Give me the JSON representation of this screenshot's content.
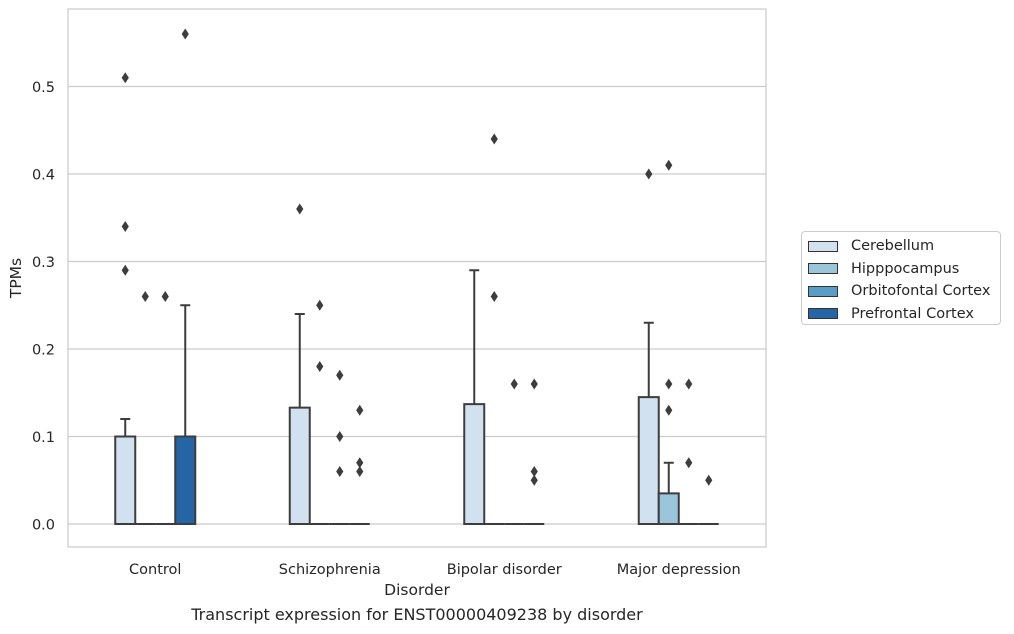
{
  "chart_data": {
    "type": "box",
    "title": "",
    "caption": "Transcript expression for ENST00000409238 by disorder",
    "xlabel": "Disorder",
    "ylabel": "TPMs",
    "ylim": [
      -0.028,
      0.588
    ],
    "yticks": [
      0.0,
      0.1,
      0.2,
      0.3,
      0.4,
      0.5
    ],
    "ytick_labels": [
      "0.0",
      "0.1",
      "0.2",
      "0.3",
      "0.4",
      "0.5"
    ],
    "grid": "horizontal",
    "legend_position": "right",
    "categories": [
      "Control",
      "Schizophrenia",
      "Bipolar disorder",
      "Major depression"
    ],
    "series": [
      {
        "name": "Cerebellum",
        "color": "#d1e1ef",
        "boxes": [
          {
            "q1": 0.0,
            "median": 0.0,
            "q3": 0.1,
            "whisker_low": 0.0,
            "whisker_high": 0.12,
            "outliers": [
              0.51,
              0.34,
              0.29
            ]
          },
          {
            "q1": 0.0,
            "median": 0.0,
            "q3": 0.133,
            "whisker_low": 0.0,
            "whisker_high": 0.24,
            "outliers": [
              0.36
            ]
          },
          {
            "q1": 0.0,
            "median": 0.0,
            "q3": 0.137,
            "whisker_low": 0.0,
            "whisker_high": 0.29,
            "outliers": []
          },
          {
            "q1": 0.0,
            "median": 0.0,
            "q3": 0.145,
            "whisker_low": 0.0,
            "whisker_high": 0.23,
            "outliers": [
              0.4
            ]
          }
        ]
      },
      {
        "name": "Hipppocampus",
        "color": "#9ac5db",
        "boxes": [
          {
            "q1": 0.0,
            "median": 0.0,
            "q3": 0.0,
            "whisker_low": 0.0,
            "whisker_high": 0.0,
            "outliers": [
              0.26
            ]
          },
          {
            "q1": 0.0,
            "median": 0.0,
            "q3": 0.0,
            "whisker_low": 0.0,
            "whisker_high": 0.0,
            "outliers": [
              0.25,
              0.18
            ]
          },
          {
            "q1": 0.0,
            "median": 0.0,
            "q3": 0.0,
            "whisker_low": 0.0,
            "whisker_high": 0.0,
            "outliers": [
              0.44,
              0.26
            ]
          },
          {
            "q1": 0.0,
            "median": 0.0,
            "q3": 0.035,
            "whisker_low": 0.0,
            "whisker_high": 0.07,
            "outliers": [
              0.41,
              0.16,
              0.13
            ]
          }
        ]
      },
      {
        "name": "Orbitofontal Cortex",
        "color": "#5a9ec8",
        "boxes": [
          {
            "q1": 0.0,
            "median": 0.0,
            "q3": 0.0,
            "whisker_low": 0.0,
            "whisker_high": 0.0,
            "outliers": [
              0.26
            ]
          },
          {
            "q1": 0.0,
            "median": 0.0,
            "q3": 0.0,
            "whisker_low": 0.0,
            "whisker_high": 0.0,
            "outliers": [
              0.17,
              0.1,
              0.06
            ]
          },
          {
            "q1": 0.0,
            "median": 0.0,
            "q3": 0.0,
            "whisker_low": 0.0,
            "whisker_high": 0.0,
            "outliers": [
              0.16
            ]
          },
          {
            "q1": 0.0,
            "median": 0.0,
            "q3": 0.0,
            "whisker_low": 0.0,
            "whisker_high": 0.0,
            "outliers": [
              0.16,
              0.07
            ]
          }
        ]
      },
      {
        "name": "Prefrontal Cortex",
        "color": "#2565a6",
        "boxes": [
          {
            "q1": 0.0,
            "median": 0.0,
            "q3": 0.1,
            "whisker_low": 0.0,
            "whisker_high": 0.25,
            "outliers": [
              0.56
            ]
          },
          {
            "q1": 0.0,
            "median": 0.0,
            "q3": 0.0,
            "whisker_low": 0.0,
            "whisker_high": 0.0,
            "outliers": [
              0.13,
              0.07,
              0.06
            ]
          },
          {
            "q1": 0.0,
            "median": 0.0,
            "q3": 0.0,
            "whisker_low": 0.0,
            "whisker_high": 0.0,
            "outliers": [
              0.16,
              0.06,
              0.05
            ]
          },
          {
            "q1": 0.0,
            "median": 0.0,
            "q3": 0.0,
            "whisker_low": 0.0,
            "whisker_high": 0.0,
            "outliers": [
              0.05
            ]
          }
        ]
      }
    ]
  }
}
